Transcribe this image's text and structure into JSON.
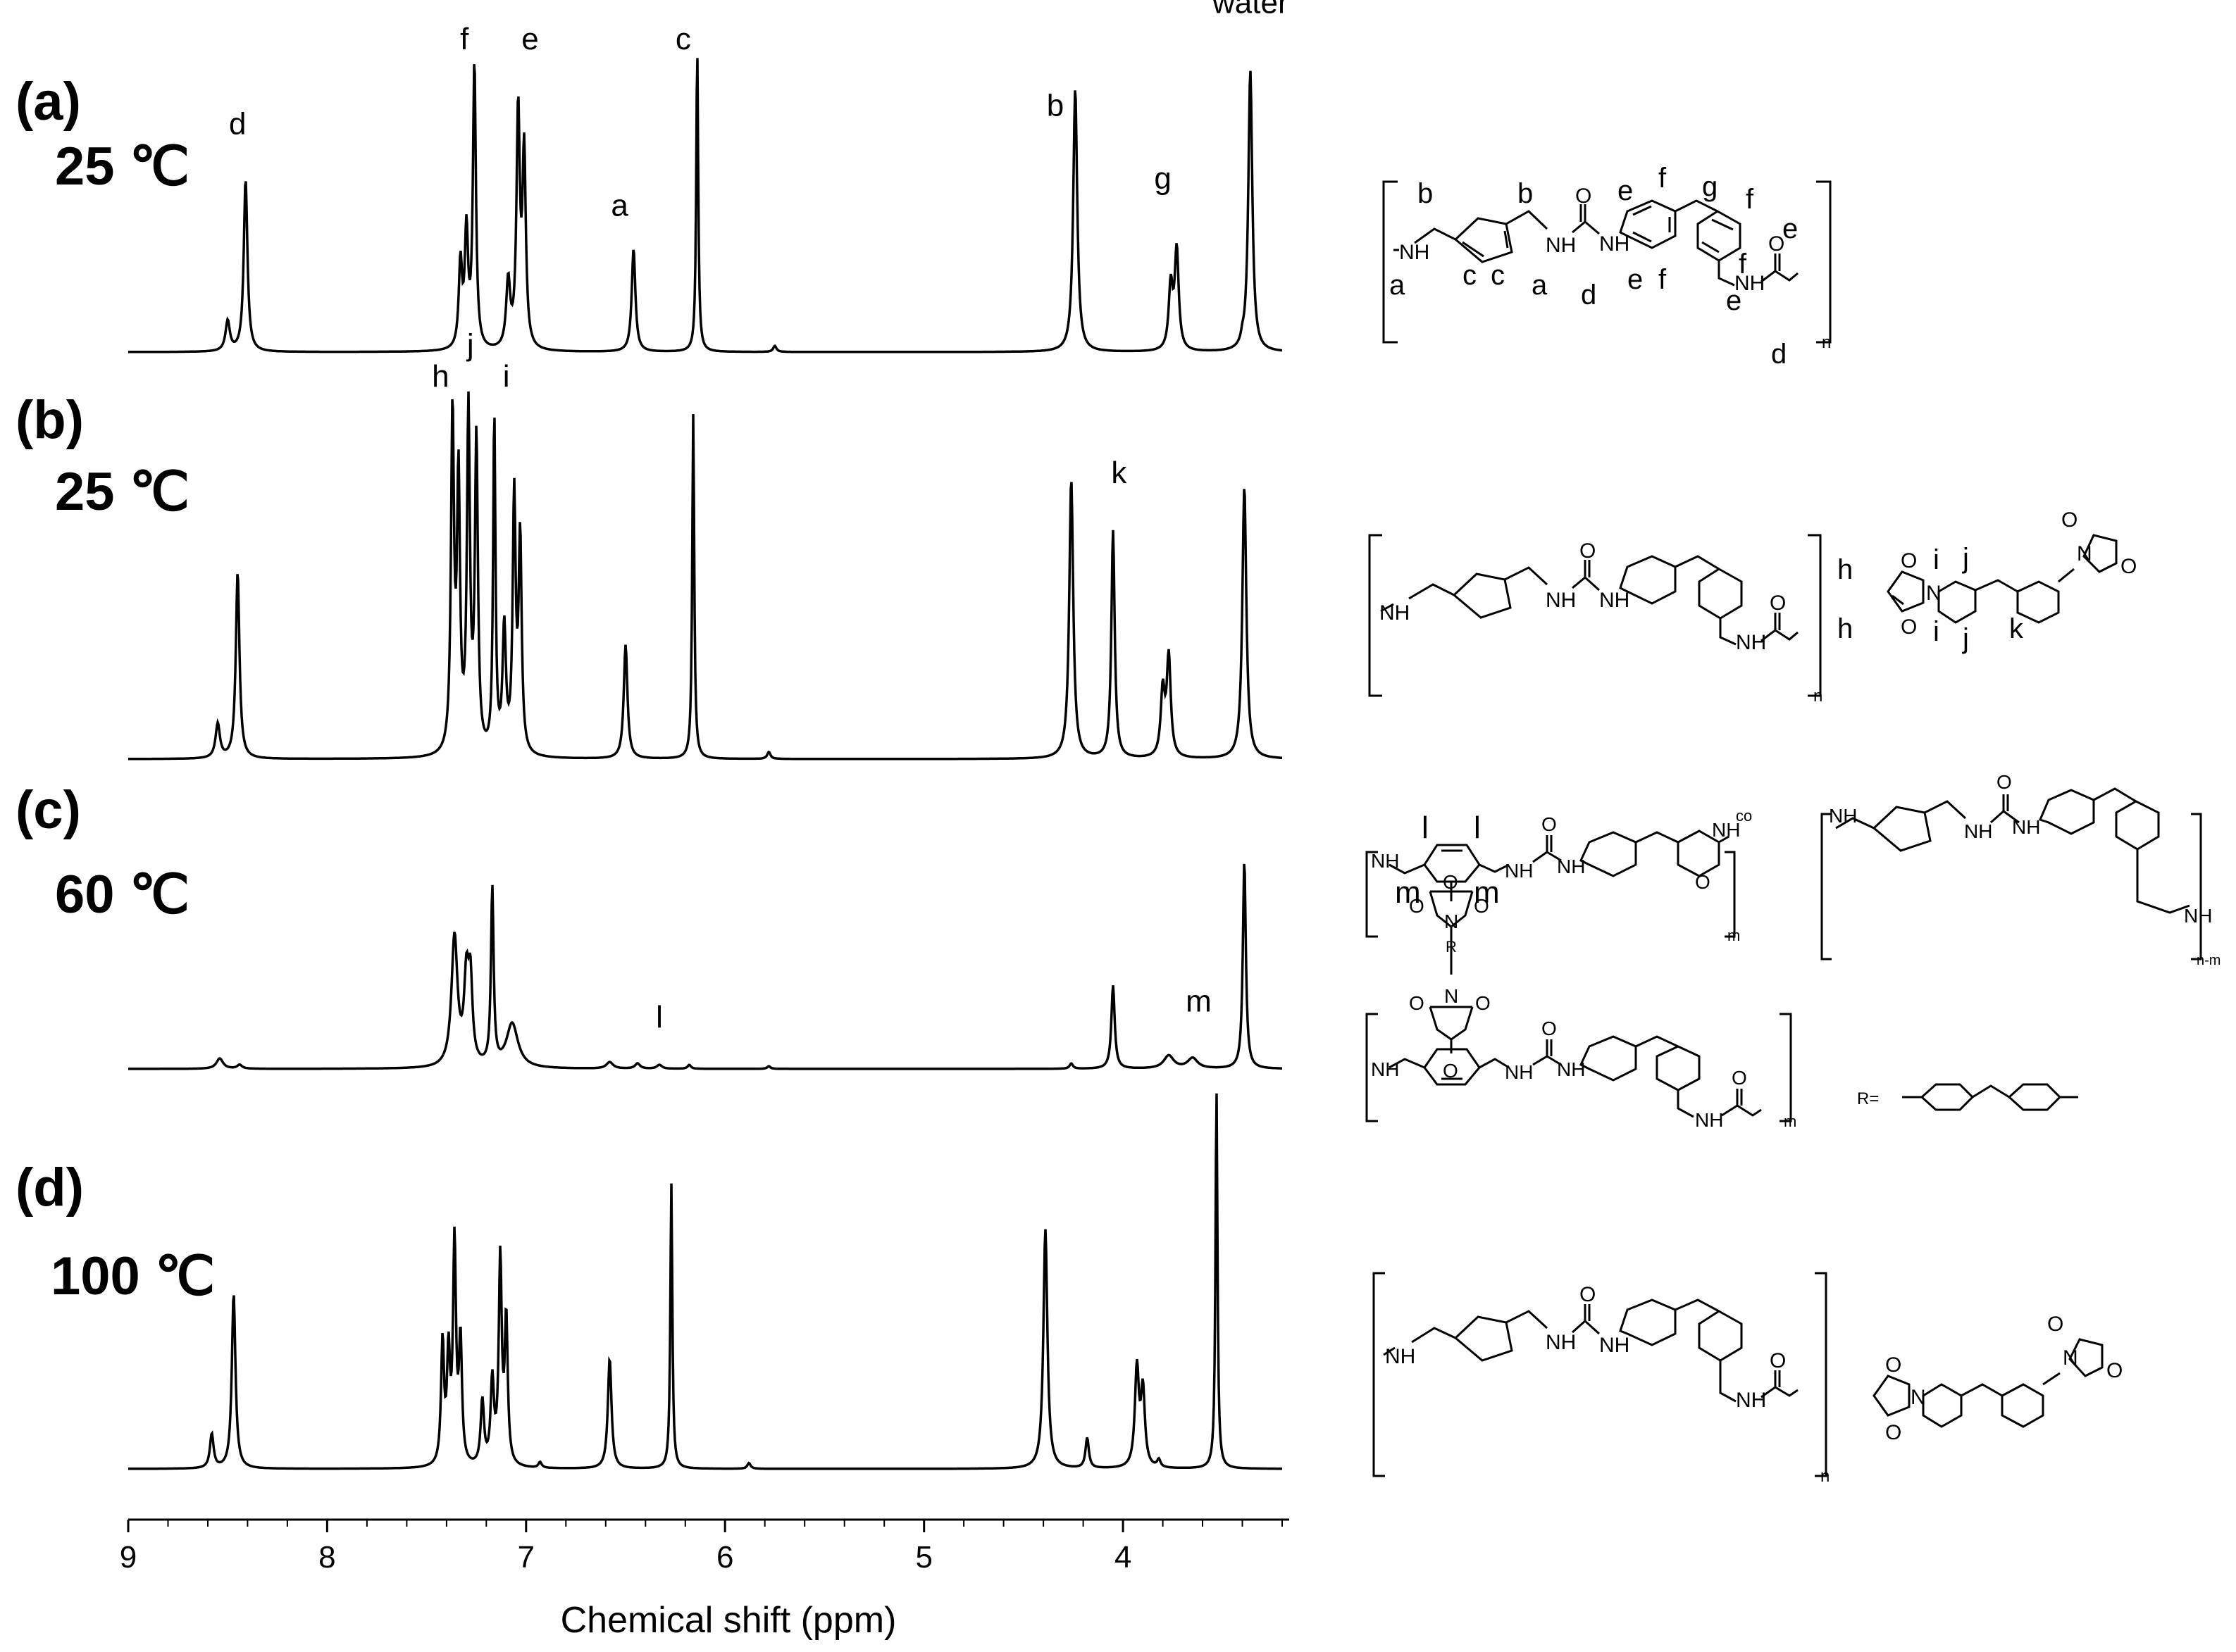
{
  "chart_data": {
    "type": "line",
    "xlabel": "Chemical shift (ppm)",
    "xlim": [
      9.0,
      3.2
    ],
    "x_ticks": [
      "9",
      "8",
      "7",
      "6",
      "5",
      "4"
    ],
    "x_tick_values": [
      9,
      8,
      7,
      6,
      5,
      4
    ],
    "series": [
      {
        "panel": "(a)",
        "temperature": "25 ℃",
        "peaks": [
          {
            "ppm": 8.5,
            "height": 0.1,
            "width": 0.013
          },
          {
            "ppm": 8.41,
            "height": 0.57,
            "width": 0.011
          },
          {
            "ppm": 7.33,
            "height": 0.28,
            "width": 0.01
          },
          {
            "ppm": 7.3,
            "height": 0.38,
            "width": 0.01
          },
          {
            "ppm": 7.26,
            "height": 0.94,
            "width": 0.009
          },
          {
            "ppm": 7.09,
            "height": 0.22,
            "width": 0.012
          },
          {
            "ppm": 7.04,
            "height": 0.78,
            "width": 0.01
          },
          {
            "ppm": 7.01,
            "height": 0.64,
            "width": 0.01
          },
          {
            "ppm": 6.46,
            "height": 0.34,
            "width": 0.011
          },
          {
            "ppm": 6.14,
            "height": 1.0,
            "width": 0.006
          },
          {
            "ppm": 5.75,
            "height": 0.02,
            "width": 0.01
          },
          {
            "ppm": 4.24,
            "height": 0.87,
            "width": 0.012
          },
          {
            "ppm": 3.76,
            "height": 0.21,
            "width": 0.012
          },
          {
            "ppm": 3.73,
            "height": 0.33,
            "width": 0.012
          },
          {
            "ppm": 3.36,
            "height": 0.93,
            "width": 0.012
          },
          {
            "ppm": 3.4,
            "height": 0.02,
            "width": 0.008
          }
        ],
        "labels": [
          {
            "text": "d",
            "ppm": 8.45,
            "h": 0.72
          },
          {
            "text": "f",
            "ppm": 7.31,
            "h": 1.0
          },
          {
            "text": "e",
            "ppm": 6.98,
            "h": 1.0
          },
          {
            "text": "a",
            "ppm": 6.53,
            "h": 0.45
          },
          {
            "text": "c",
            "ppm": 6.21,
            "h": 1.0
          },
          {
            "text": "b",
            "ppm": 4.34,
            "h": 0.78
          },
          {
            "text": "g",
            "ppm": 3.8,
            "h": 0.54
          },
          {
            "text": "water",
            "ppm": 3.36,
            "h": 1.12
          }
        ]
      },
      {
        "panel": "(b)",
        "temperature": "25 ℃",
        "peaks": [
          {
            "ppm": 8.55,
            "height": 0.1,
            "width": 0.013
          },
          {
            "ppm": 8.45,
            "height": 0.54,
            "width": 0.011
          },
          {
            "ppm": 7.37,
            "height": 0.98,
            "width": 0.009
          },
          {
            "ppm": 7.34,
            "height": 0.78,
            "width": 0.009
          },
          {
            "ppm": 7.29,
            "height": 0.98,
            "width": 0.009
          },
          {
            "ppm": 7.25,
            "height": 0.9,
            "width": 0.009
          },
          {
            "ppm": 7.16,
            "height": 0.98,
            "width": 0.007
          },
          {
            "ppm": 7.11,
            "height": 0.36,
            "width": 0.01
          },
          {
            "ppm": 7.06,
            "height": 0.74,
            "width": 0.009
          },
          {
            "ppm": 7.03,
            "height": 0.62,
            "width": 0.009
          },
          {
            "ppm": 6.5,
            "height": 0.33,
            "width": 0.011
          },
          {
            "ppm": 6.16,
            "height": 1.0,
            "width": 0.006
          },
          {
            "ppm": 5.78,
            "height": 0.02,
            "width": 0.01
          },
          {
            "ppm": 4.26,
            "height": 0.81,
            "width": 0.012
          },
          {
            "ppm": 4.05,
            "height": 0.66,
            "width": 0.01
          },
          {
            "ppm": 3.8,
            "height": 0.19,
            "width": 0.012
          },
          {
            "ppm": 3.77,
            "height": 0.29,
            "width": 0.012
          },
          {
            "ppm": 3.39,
            "height": 0.79,
            "width": 0.012
          }
        ],
        "labels": [
          {
            "text": "h",
            "ppm": 7.43,
            "h": 1.08
          },
          {
            "text": "j",
            "ppm": 7.28,
            "h": 1.17
          },
          {
            "text": "i",
            "ppm": 7.1,
            "h": 1.08
          },
          {
            "text": "k",
            "ppm": 4.02,
            "h": 0.8
          }
        ]
      },
      {
        "panel": "(c)",
        "temperature": "60 ℃",
        "peaks": [
          {
            "ppm": 8.54,
            "height": 0.04,
            "width": 0.02
          },
          {
            "ppm": 8.44,
            "height": 0.015,
            "width": 0.015
          },
          {
            "ppm": 7.36,
            "height": 0.5,
            "width": 0.018
          },
          {
            "ppm": 7.3,
            "height": 0.32,
            "width": 0.014
          },
          {
            "ppm": 7.28,
            "height": 0.3,
            "width": 0.012
          },
          {
            "ppm": 7.17,
            "height": 0.68,
            "width": 0.008
          },
          {
            "ppm": 7.07,
            "height": 0.17,
            "width": 0.035
          },
          {
            "ppm": 6.58,
            "height": 0.025,
            "width": 0.02
          },
          {
            "ppm": 6.44,
            "height": 0.02,
            "width": 0.015
          },
          {
            "ppm": 6.33,
            "height": 0.015,
            "width": 0.015
          },
          {
            "ppm": 6.18,
            "height": 0.015,
            "width": 0.01
          },
          {
            "ppm": 5.78,
            "height": 0.01,
            "width": 0.01
          },
          {
            "ppm": 4.26,
            "height": 0.02,
            "width": 0.01
          },
          {
            "ppm": 4.05,
            "height": 0.32,
            "width": 0.01
          },
          {
            "ppm": 3.77,
            "height": 0.05,
            "width": 0.03
          },
          {
            "ppm": 3.65,
            "height": 0.04,
            "width": 0.03
          },
          {
            "ppm": 3.39,
            "height": 0.8,
            "width": 0.009
          }
        ],
        "labels": [
          {
            "text": "l",
            "ppm": 6.33,
            "h": 0.16
          },
          {
            "text": "m",
            "ppm": 3.62,
            "h": 0.22
          }
        ]
      },
      {
        "panel": "(d)",
        "temperature": "100 ℃",
        "peaks": [
          {
            "ppm": 8.58,
            "height": 0.09,
            "width": 0.011
          },
          {
            "ppm": 8.47,
            "height": 0.46,
            "width": 0.011
          },
          {
            "ppm": 7.42,
            "height": 0.32,
            "width": 0.009
          },
          {
            "ppm": 7.39,
            "height": 0.28,
            "width": 0.009
          },
          {
            "ppm": 7.36,
            "height": 0.58,
            "width": 0.009
          },
          {
            "ppm": 7.33,
            "height": 0.32,
            "width": 0.009
          },
          {
            "ppm": 7.22,
            "height": 0.17,
            "width": 0.01
          },
          {
            "ppm": 7.17,
            "height": 0.22,
            "width": 0.01
          },
          {
            "ppm": 7.13,
            "height": 0.54,
            "width": 0.009
          },
          {
            "ppm": 7.1,
            "height": 0.38,
            "width": 0.009
          },
          {
            "ppm": 6.93,
            "height": 0.015,
            "width": 0.01
          },
          {
            "ppm": 6.58,
            "height": 0.29,
            "width": 0.011
          },
          {
            "ppm": 6.27,
            "height": 0.75,
            "width": 0.006
          },
          {
            "ppm": 5.88,
            "height": 0.015,
            "width": 0.01
          },
          {
            "ppm": 4.39,
            "height": 0.63,
            "width": 0.012
          },
          {
            "ppm": 4.18,
            "height": 0.08,
            "width": 0.01
          },
          {
            "ppm": 3.93,
            "height": 0.26,
            "width": 0.012
          },
          {
            "ppm": 3.9,
            "height": 0.2,
            "width": 0.012
          },
          {
            "ppm": 3.82,
            "height": 0.02,
            "width": 0.01
          },
          {
            "ppm": 3.53,
            "height": 1.0,
            "width": 0.006
          }
        ],
        "labels": []
      }
    ]
  },
  "structures": {
    "a": {
      "labels": [
        "b",
        "b",
        "e",
        "f",
        "g",
        "f",
        "e",
        "f",
        "e",
        "a",
        "c",
        "c",
        "a",
        "d",
        "e",
        "f",
        "d"
      ],
      "sub": "n"
    },
    "b": {
      "labels": [
        "h",
        "i",
        "j",
        "h",
        "i",
        "j",
        "k"
      ],
      "sub": "n"
    },
    "c": {
      "labels": [
        "l",
        "l",
        "m",
        "m"
      ],
      "sub_m": "m",
      "sub_nm": "n-m",
      "co": "co",
      "r_label": "R=",
      "r_atom": "R"
    },
    "d": {
      "sub": "n"
    },
    "atoms": {
      "O": "O",
      "N": "N",
      "NH": "NH",
      "H": "H"
    }
  }
}
